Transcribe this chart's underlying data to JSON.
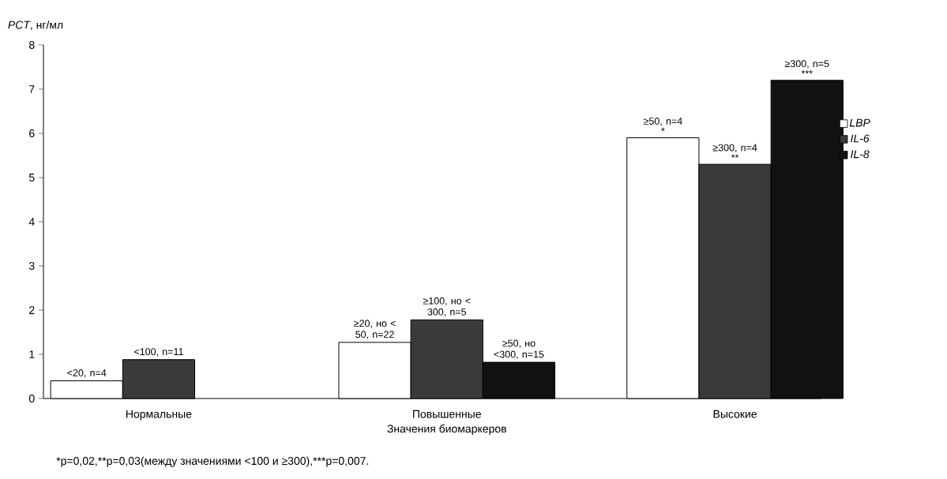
{
  "chart_data": {
    "type": "bar",
    "ylabel": "*PCT*, нг/мл",
    "xlabel": "Значения биомаркеров",
    "categories": [
      "Нормальные",
      "Повышенные",
      "Высокие"
    ],
    "series": [
      {
        "name": "LBP",
        "color": "#ffffff",
        "values": [
          0.4,
          1.27,
          5.9
        ]
      },
      {
        "name": "IL-6",
        "color": "#3a3a3a",
        "values": [
          0.88,
          1.78,
          5.3
        ]
      },
      {
        "name": "IL-8",
        "color": "#111111",
        "values": [
          null,
          0.82,
          7.2
        ]
      }
    ],
    "ylim": [
      0,
      8
    ],
    "yticks": [
      0,
      1,
      2,
      3,
      4,
      5,
      6,
      7,
      8
    ],
    "grid": false,
    "legend": "right",
    "annotations": [
      "<20, n=4",
      "<100, n=11",
      "≥20, но < 50, n=22",
      "≥100, но < 300, n=5",
      "≥50, но <300, n=15",
      "≥50, n=4",
      "*",
      "≥300, n=4",
      "**",
      "≥300, n=5",
      "***",
      "*p=0,02,",
      "**p=0,03(между значениями <100 и ≥300),",
      "***p=0,007."
    ]
  }
}
